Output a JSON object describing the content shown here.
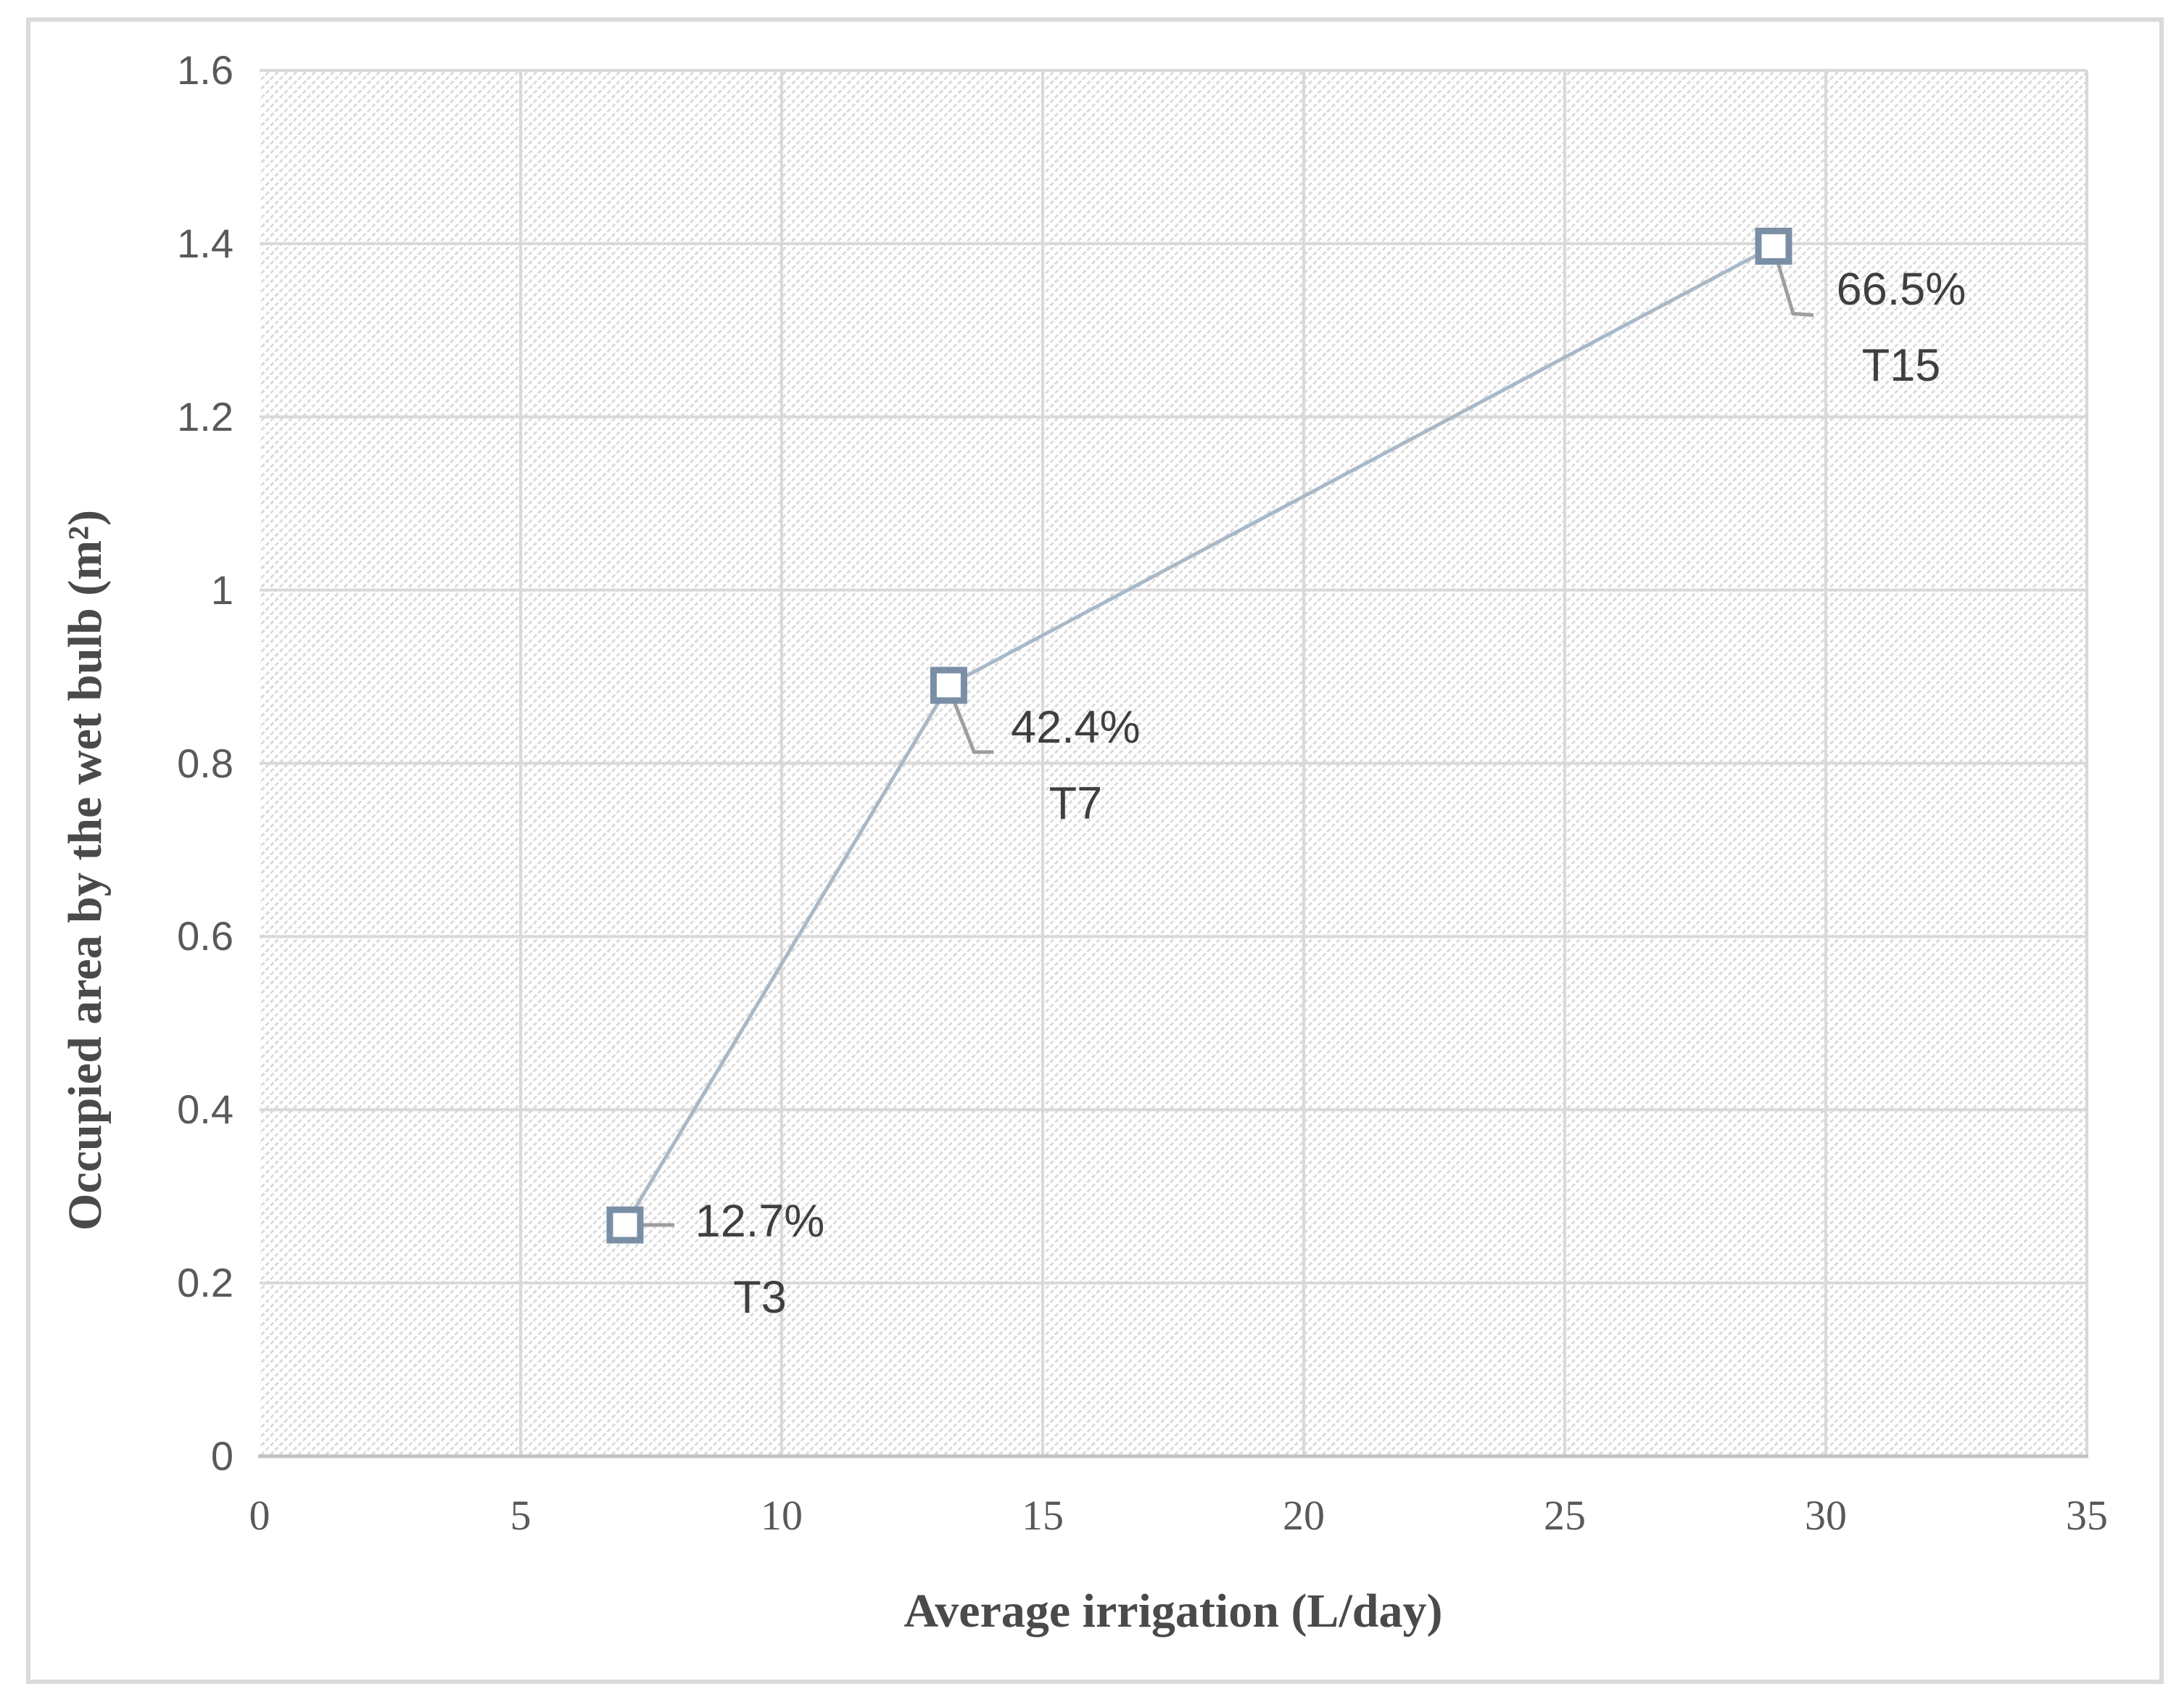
{
  "chart_data": {
    "type": "line",
    "title": "",
    "xlabel": "Average irrigation (L/day)",
    "ylabel": "Occupied area by the wet bulb (m²)",
    "xlim": [
      0,
      35
    ],
    "ylim": [
      0,
      1.6
    ],
    "x_tick_values": [
      0,
      5,
      10,
      15,
      20,
      25,
      30,
      35
    ],
    "x_tick_labels": [
      "0",
      "5",
      "10",
      "15",
      "20",
      "25",
      "30",
      "35"
    ],
    "y_tick_values": [
      0,
      0.2,
      0.4,
      0.6,
      0.8,
      1.0,
      1.2,
      1.4,
      1.6
    ],
    "y_tick_labels": [
      "0",
      "0.2",
      "0.4",
      "0.6",
      "0.8",
      "1",
      "1.2",
      "1.4",
      "1.6"
    ],
    "grid": true,
    "legend": false,
    "plot_area_fill": "dotted diagonal hatch",
    "series": [
      {
        "name": "Occupied area by the wet bulb",
        "marker": "open-square",
        "points": [
          {
            "x": 7,
            "y": 0.267,
            "percent_label": "12.7%",
            "treatment_label": "T3"
          },
          {
            "x": 13.2,
            "y": 0.89,
            "percent_label": "42.4%",
            "treatment_label": "T7"
          },
          {
            "x": 29,
            "y": 1.397,
            "percent_label": "66.5%",
            "treatment_label": "T15"
          }
        ]
      }
    ]
  },
  "style": {
    "figure_border_color": "#dadada",
    "gridline_color": "#d9d9d9",
    "axis_line_color": "#c2c2c2",
    "hatch_color": "#dbdbdb",
    "marker_stroke_color": "#7a8fa6",
    "series_line_color": "#a9b8c8",
    "leader_line_color": "#9e9e9e",
    "tick_label_color": "#595959",
    "axis_title_color": "#4a4a4a",
    "data_label_color": "#3f3f3f"
  }
}
